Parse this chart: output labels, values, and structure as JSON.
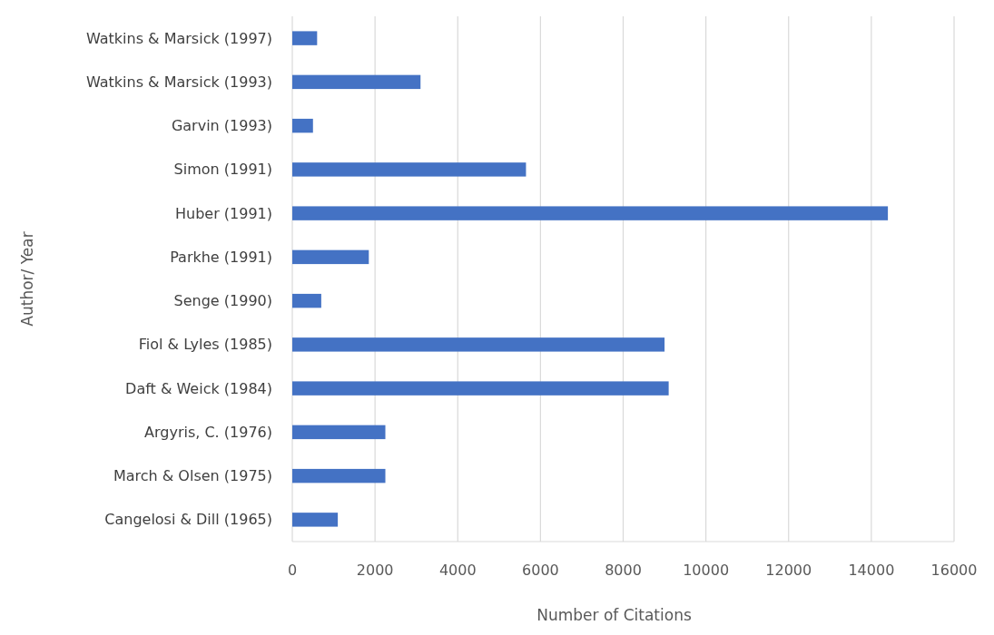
{
  "chart_data": {
    "type": "bar",
    "orientation": "horizontal",
    "xlabel": "Number of Citations",
    "ylabel": "Author/ Year",
    "categories": [
      "Watkins & Marsick (1997)",
      "Watkins & Marsick (1993)",
      "Garvin (1993)",
      "Simon (1991)",
      "Huber (1991)",
      "Parkhe (1991)",
      "Senge (1990)",
      "Fiol & Lyles (1985)",
      "Daft & Weick (1984)",
      "Argyris, C. (1976)",
      "March & Olsen (1975)",
      "Cangelosi & Dill (1965)"
    ],
    "values": [
      600,
      3100,
      500,
      5650,
      14400,
      1850,
      700,
      9000,
      9100,
      2250,
      2250,
      1100
    ],
    "color": "#4472c4",
    "xlim": [
      0,
      16000
    ],
    "xticks": [
      0,
      2000,
      4000,
      6000,
      8000,
      10000,
      12000,
      14000,
      16000
    ],
    "grid": "x"
  }
}
